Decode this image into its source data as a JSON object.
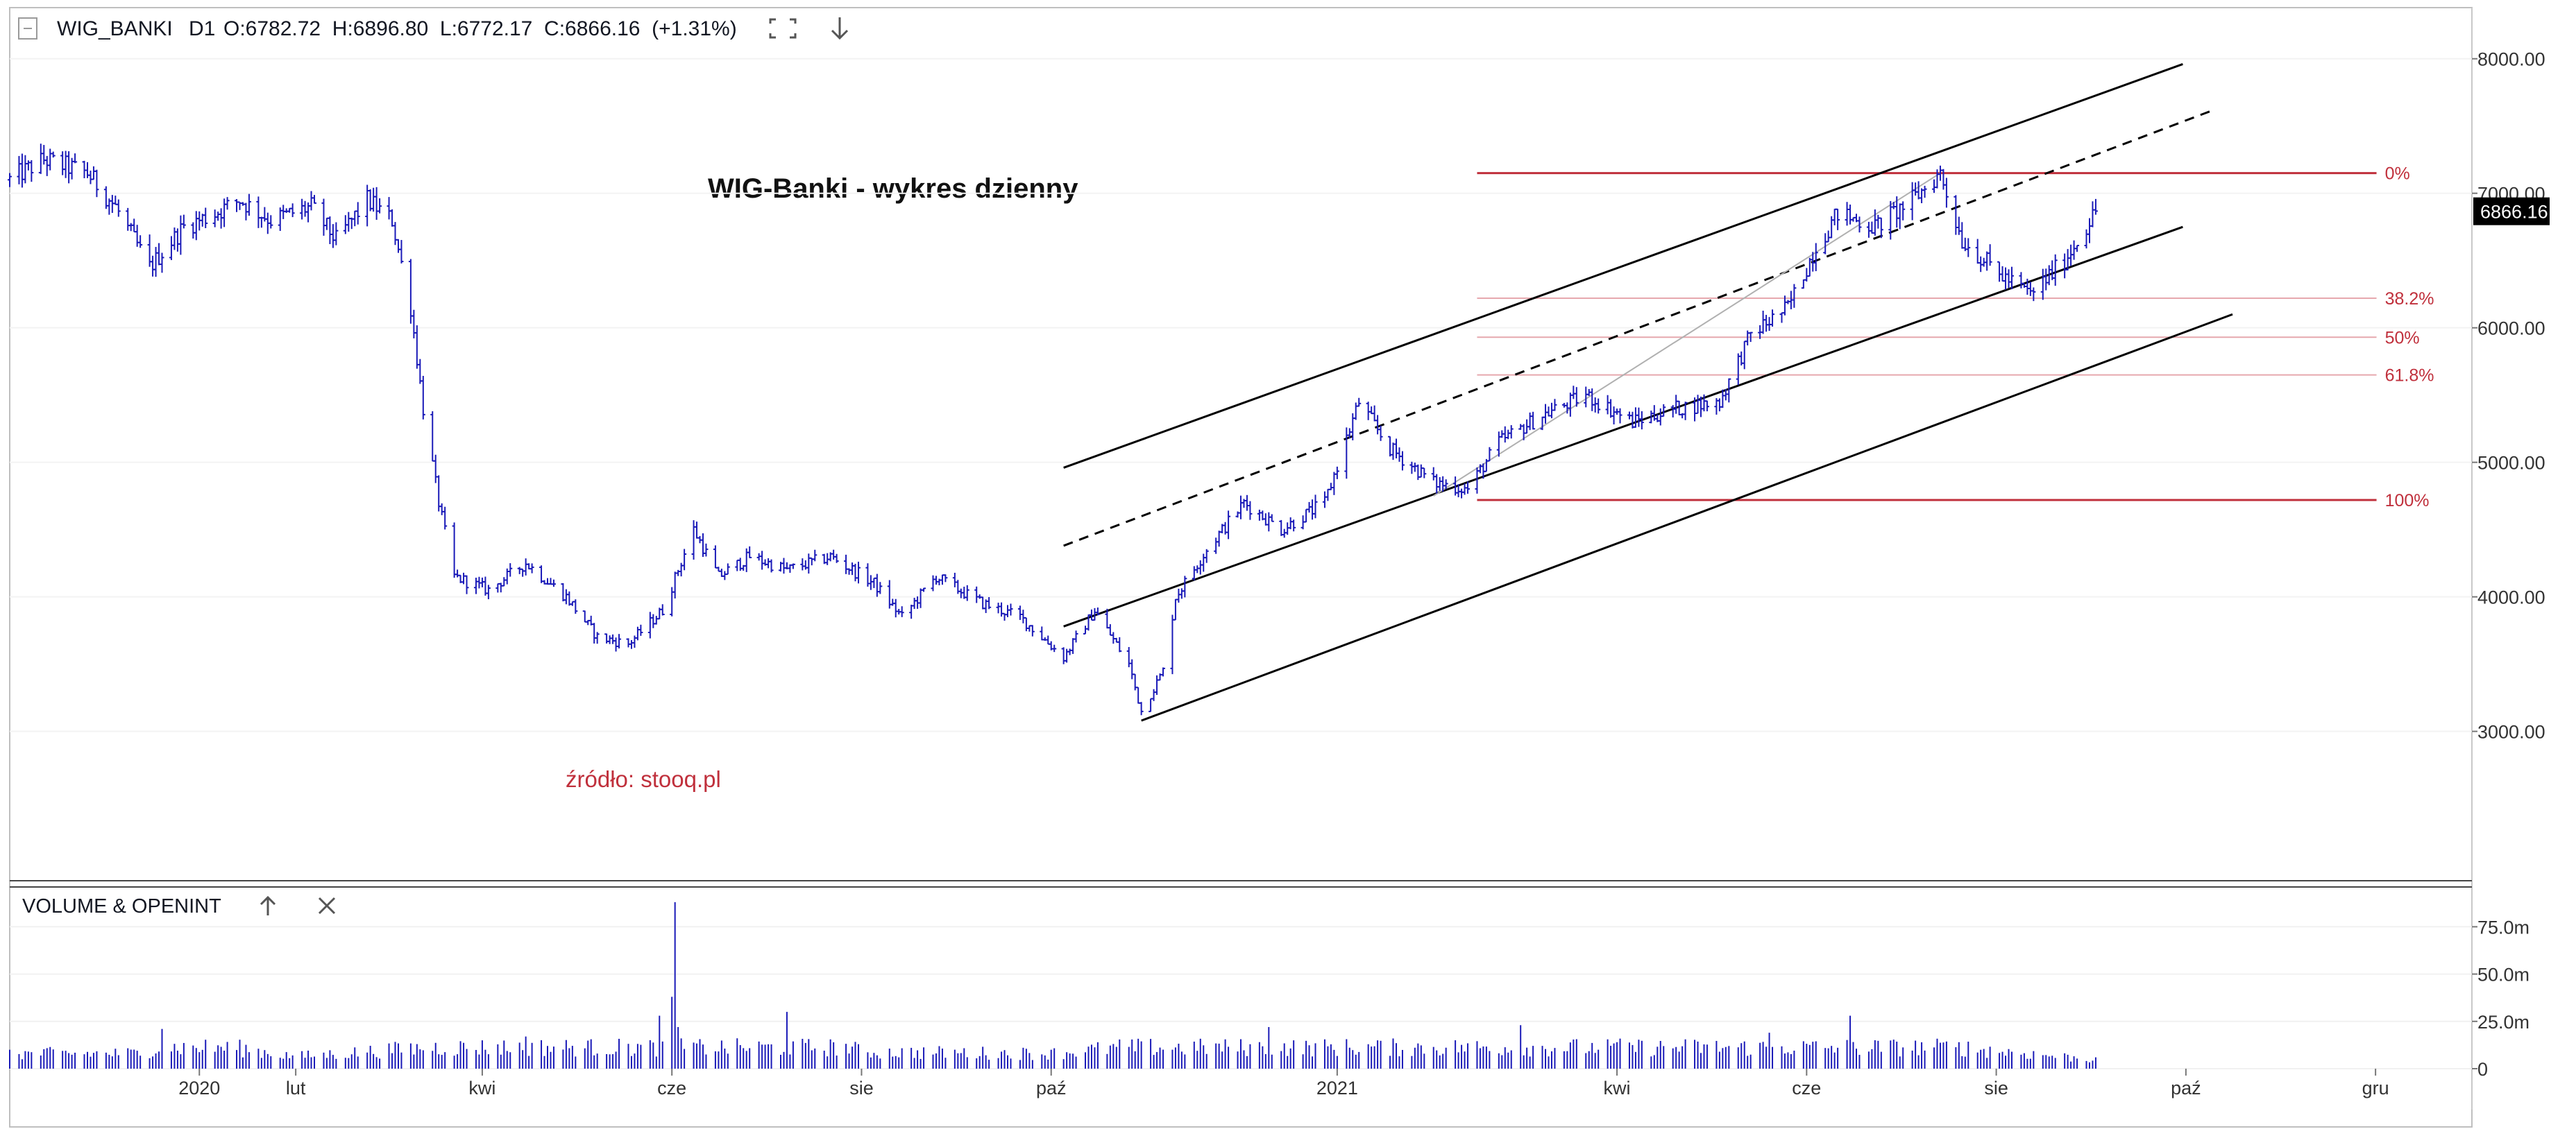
{
  "header": {
    "symbol": "WIG_BANKI",
    "interval": "D1",
    "ohlc": "O:6782.72  H:6896.80  L:6772.17  C:6866.16  (+1.31%)",
    "icons": [
      "collapse-icon",
      "fullscreen-icon",
      "download-arrow-icon"
    ]
  },
  "annotations": {
    "title": "WIG-Banki - wykres dzienny",
    "source": "źródło: stooq.pl"
  },
  "volume_panel": {
    "title": "VOLUME & OPENINT",
    "icons": [
      "arrow-up-icon",
      "close-icon"
    ]
  },
  "colors": {
    "price": "#1a1ab8",
    "fibonacci": "#c0303c",
    "trendlines": "#000000",
    "fib_fill_lines": "#e6a8ae",
    "volume": "#1a1ab8"
  },
  "chart_data": [
    {
      "type": "bar",
      "subtype": "ohlc",
      "title": "WIG-Banki - wykres dzienny",
      "symbol": "WIG_BANKI",
      "interval": "D1",
      "last_price_label": "6866.16",
      "x_axis": {
        "ticks": [
          "2020",
          "lut",
          "kwi",
          "cze",
          "sie",
          "paź",
          "2021",
          "kwi",
          "cze",
          "sie",
          "paź",
          "gru"
        ],
        "tick_dates": [
          "2020-01-01",
          "2020-02-01",
          "2020-04-01",
          "2020-06-01",
          "2020-08-01",
          "2020-10-01",
          "2021-01-01",
          "2021-04-01",
          "2021-06-01",
          "2021-08-01",
          "2021-10-01",
          "2021-12-01"
        ],
        "range": [
          "2019-11-01",
          "2022-01-01"
        ]
      },
      "y_axis": {
        "ticks": [
          "3000.00",
          "4000.00",
          "5000.00",
          "6000.00",
          "7000.00",
          "8000.00"
        ],
        "tick_values": [
          3000,
          4000,
          5000,
          6000,
          7000,
          8000
        ],
        "range": [
          1900,
          8380
        ]
      },
      "series": [
        {
          "values": [
            [
              "2019-11-01",
              7100
            ],
            [
              "2019-11-12",
              7250
            ],
            [
              "2019-11-26",
              7150
            ],
            [
              "2019-12-05",
              6900
            ],
            [
              "2019-12-16",
              6450
            ],
            [
              "2019-12-27",
              6750
            ],
            [
              "2020-01-06",
              6850
            ],
            [
              "2020-01-14",
              6950
            ],
            [
              "2020-01-24",
              6800
            ],
            [
              "2020-02-06",
              6900
            ],
            [
              "2020-02-14",
              6650
            ],
            [
              "2020-02-24",
              6950
            ],
            [
              "2020-03-03",
              6800
            ],
            [
              "2020-03-09",
              6150
            ],
            [
              "2020-03-13",
              5400
            ],
            [
              "2020-03-18",
              4700
            ],
            [
              "2020-03-23",
              4150
            ],
            [
              "2020-04-03",
              4050
            ],
            [
              "2020-04-15",
              4250
            ],
            [
              "2020-04-28",
              4000
            ],
            [
              "2020-05-08",
              3700
            ],
            [
              "2020-05-18",
              3650
            ],
            [
              "2020-05-29",
              3900
            ],
            [
              "2020-06-08",
              4500
            ],
            [
              "2020-06-16",
              4150
            ],
            [
              "2020-06-26",
              4300
            ],
            [
              "2020-07-08",
              4200
            ],
            [
              "2020-07-22",
              4300
            ],
            [
              "2020-08-05",
              4100
            ],
            [
              "2020-08-14",
              3850
            ],
            [
              "2020-08-25",
              4150
            ],
            [
              "2020-09-09",
              3950
            ],
            [
              "2020-09-21",
              3850
            ],
            [
              "2020-10-05",
              3550
            ],
            [
              "2020-10-15",
              3900
            ],
            [
              "2020-10-26",
              3500
            ],
            [
              "2020-10-30",
              3150
            ],
            [
              "2020-11-06",
              3450
            ],
            [
              "2020-11-10",
              4000
            ],
            [
              "2020-11-20",
              4350
            ],
            [
              "2020-12-02",
              4700
            ],
            [
              "2020-12-14",
              4500
            ],
            [
              "2020-12-28",
              4700
            ],
            [
              "2021-01-08",
              5450
            ],
            [
              "2021-01-18",
              5100
            ],
            [
              "2021-02-01",
              4850
            ],
            [
              "2021-02-12",
              4800
            ],
            [
              "2021-02-22",
              5150
            ],
            [
              "2021-03-08",
              5350
            ],
            [
              "2021-03-22",
              5500
            ],
            [
              "2021-04-06",
              5300
            ],
            [
              "2021-04-20",
              5400
            ],
            [
              "2021-05-04",
              5450
            ],
            [
              "2021-05-14",
              5950
            ],
            [
              "2021-05-26",
              6150
            ],
            [
              "2021-06-04",
              6600
            ],
            [
              "2021-06-11",
              6850
            ],
            [
              "2021-06-23",
              6750
            ],
            [
              "2021-07-05",
              6950
            ],
            [
              "2021-07-14",
              7150
            ],
            [
              "2021-07-21",
              6650
            ],
            [
              "2021-08-02",
              6400
            ],
            [
              "2021-08-12",
              6250
            ],
            [
              "2021-08-23",
              6500
            ],
            [
              "2021-09-02",
              6866.16
            ]
          ]
        }
      ],
      "fibonacci": {
        "levels": [
          {
            "label": "0%",
            "value": 7150
          },
          {
            "label": "38.2%",
            "value": 6220
          },
          {
            "label": "50%",
            "value": 5930
          },
          {
            "label": "61.8%",
            "value": 5650
          },
          {
            "label": "100%",
            "value": 4720
          }
        ],
        "start_date": "2021-02-15",
        "label_date": "2021-12-04"
      },
      "trendlines": [
        {
          "style": "solid",
          "from": [
            "2020-10-05",
            4960
          ],
          "to": [
            "2021-09-30",
            7960
          ]
        },
        {
          "style": "dashed",
          "from": [
            "2020-10-05",
            4380
          ],
          "to": [
            "2021-10-10",
            7620
          ]
        },
        {
          "style": "solid",
          "from": [
            "2020-10-05",
            3780
          ],
          "to": [
            "2021-09-30",
            6750
          ]
        },
        {
          "style": "solid",
          "from": [
            "2020-10-30",
            3080
          ],
          "to": [
            "2021-10-16",
            6100
          ]
        },
        {
          "style": "thin",
          "from": [
            "2021-02-01",
            4750
          ],
          "to": [
            "2021-07-14",
            7150
          ]
        }
      ]
    },
    {
      "type": "bar",
      "title": "VOLUME & OPENINT",
      "y_axis": {
        "ticks": [
          "0",
          "25.0m",
          "50.0m",
          "75.0m"
        ],
        "tick_values": [
          0,
          25,
          50,
          75
        ],
        "unit": "million",
        "range": [
          0,
          92
        ]
      },
      "series": [
        {
          "values": [
            [
              "2019-11-01",
              10
            ],
            [
              "2019-12-15",
              10
            ],
            [
              "2019-12-20",
              21
            ],
            [
              "2020-02-01",
              8
            ],
            [
              "2020-03-15",
              14
            ],
            [
              "2020-04-15",
              17
            ],
            [
              "2020-05-10",
              15
            ],
            [
              "2020-05-28",
              28
            ],
            [
              "2020-06-01",
              38
            ],
            [
              "2020-06-02",
              88
            ],
            [
              "2020-06-03",
              22
            ],
            [
              "2020-06-20",
              16
            ],
            [
              "2020-07-08",
              30
            ],
            [
              "2020-08-01",
              11
            ],
            [
              "2020-10-01",
              10
            ],
            [
              "2020-11-15",
              18
            ],
            [
              "2020-12-10",
              22
            ],
            [
              "2021-01-10",
              21
            ],
            [
              "2021-03-01",
              23
            ],
            [
              "2021-04-01",
              14
            ],
            [
              "2021-05-20",
              19
            ],
            [
              "2021-06-15",
              28
            ],
            [
              "2021-07-20",
              14
            ],
            [
              "2021-09-02",
              6
            ]
          ]
        }
      ]
    }
  ]
}
